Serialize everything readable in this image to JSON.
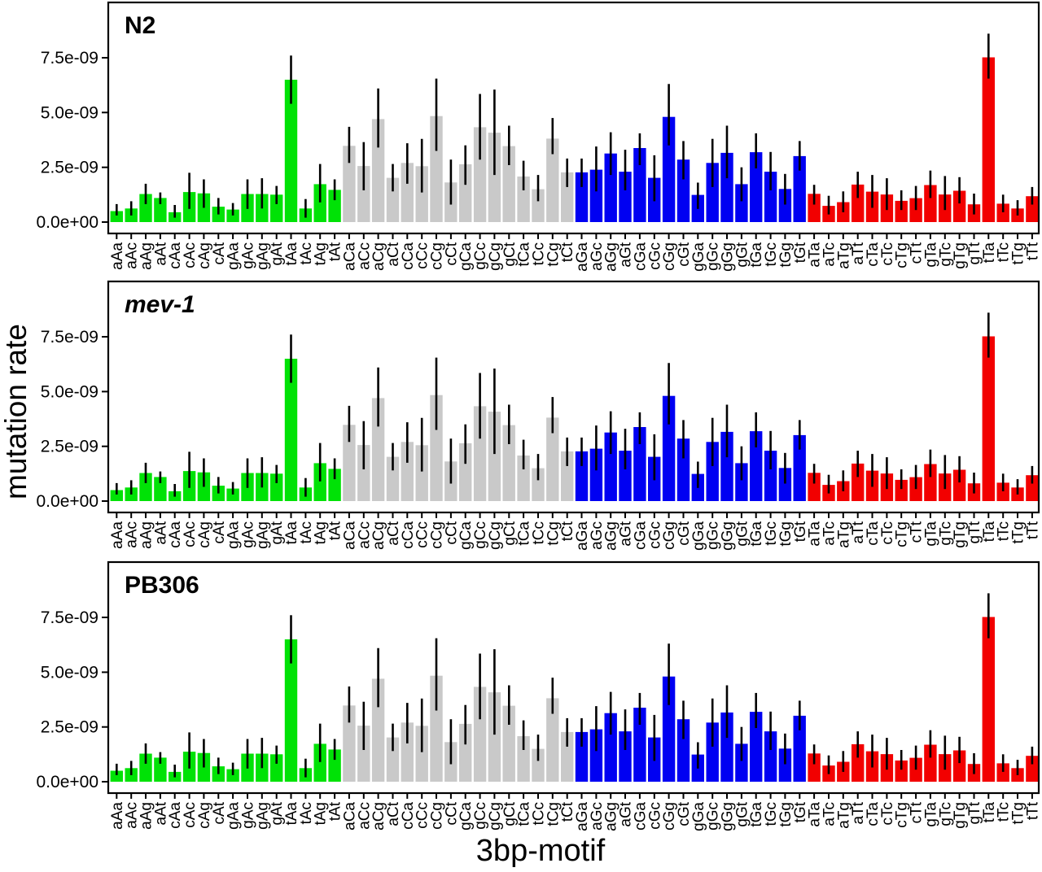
{
  "figure": {
    "description": "Three-panel bar chart of mutation rate by 3bp motif for three strains",
    "panel_count": 3
  },
  "chart_data": {
    "type": "bar",
    "title": "",
    "xlabel": "3bp-motif",
    "ylabel": "mutation rate",
    "grid": false,
    "error_bars": true,
    "legend": "none",
    "value_unit": "1e-9",
    "ylim": [
      0,
      10
    ],
    "yticks": [
      "0.0e+00",
      "2.5e-09",
      "5.0e-09",
      "7.5e-09"
    ],
    "ytick_values": [
      0,
      2.5,
      5.0,
      7.5
    ],
    "categories": [
      "aAa",
      "aAc",
      "aAg",
      "aAt",
      "cAa",
      "cAc",
      "cAg",
      "cAt",
      "gAa",
      "gAc",
      "gAg",
      "gAt",
      "tAa",
      "tAc",
      "tAg",
      "tAt",
      "aCa",
      "aCc",
      "aCg",
      "aCt",
      "cCa",
      "cCc",
      "cCg",
      "cCt",
      "gCa",
      "gCc",
      "gCg",
      "gCt",
      "tCa",
      "tCc",
      "tCg",
      "tCt",
      "aGa",
      "aGc",
      "aGg",
      "aGt",
      "cGa",
      "cGc",
      "cGg",
      "cGt",
      "gGa",
      "gGc",
      "gGg",
      "gGt",
      "tGa",
      "tGc",
      "tGg",
      "tGt",
      "aTa",
      "aTc",
      "aTg",
      "aTt",
      "cTa",
      "cTc",
      "cTg",
      "cTt",
      "gTa",
      "gTc",
      "gTg",
      "gTt",
      "tTa",
      "tTc",
      "tTg",
      "tTt"
    ],
    "groups": [
      {
        "center_base": "A",
        "color": "#00E206",
        "index_range": [
          0,
          15
        ]
      },
      {
        "center_base": "C",
        "color": "#C9C9C9",
        "index_range": [
          16,
          31
        ]
      },
      {
        "center_base": "G",
        "color": "#0000F2",
        "index_range": [
          32,
          47
        ]
      },
      {
        "center_base": "T",
        "color": "#F20000",
        "index_range": [
          48,
          63
        ]
      }
    ],
    "panels": [
      {
        "label": "N2",
        "italic": false,
        "values": [
          0.5,
          0.62,
          1.28,
          1.1,
          0.45,
          1.37,
          1.31,
          0.7,
          0.57,
          1.28,
          1.28,
          1.25,
          6.5,
          0.62,
          1.73,
          1.47,
          3.48,
          2.56,
          4.7,
          2.02,
          2.7,
          2.55,
          4.84,
          1.81,
          2.64,
          4.33,
          4.08,
          3.47,
          2.08,
          1.5,
          3.81,
          2.27,
          2.27,
          2.39,
          3.13,
          2.3,
          3.38,
          2.02,
          4.8,
          2.85,
          1.24,
          2.7,
          3.16,
          1.73,
          3.19,
          2.3,
          1.51,
          3.01,
          1.29,
          0.74,
          0.91,
          1.71,
          1.39,
          1.26,
          0.97,
          1.09,
          1.69,
          1.26,
          1.43,
          0.81,
          7.52,
          0.84,
          0.62,
          1.18
        ],
        "err_lo": [
          0.3,
          0.3,
          0.82,
          0.82,
          0.2,
          0.6,
          0.65,
          0.35,
          0.3,
          0.6,
          0.62,
          0.82,
          5.4,
          0.2,
          0.9,
          1.0,
          2.7,
          1.45,
          3.4,
          1.4,
          1.75,
          1.35,
          3.25,
          0.8,
          1.7,
          2.85,
          2.15,
          2.6,
          1.45,
          0.95,
          3.1,
          1.6,
          1.6,
          1.4,
          2.15,
          1.45,
          2.6,
          0.95,
          3.5,
          1.95,
          0.6,
          1.6,
          2.0,
          0.95,
          2.45,
          1.45,
          0.8,
          2.35,
          0.8,
          0.35,
          0.45,
          1.1,
          0.65,
          0.55,
          0.55,
          0.55,
          1.1,
          0.55,
          0.85,
          0.35,
          6.55,
          0.45,
          0.3,
          0.8
        ],
        "err_hi": [
          0.82,
          0.95,
          1.75,
          1.35,
          0.78,
          2.25,
          1.95,
          1.1,
          0.87,
          1.95,
          2.0,
          1.65,
          7.6,
          1.05,
          2.65,
          1.95,
          4.35,
          3.65,
          6.1,
          2.65,
          3.6,
          3.8,
          6.55,
          2.85,
          3.5,
          5.85,
          6.05,
          4.4,
          2.8,
          2.15,
          4.75,
          2.9,
          2.9,
          3.45,
          4.1,
          3.3,
          4.05,
          3.05,
          6.3,
          3.7,
          1.8,
          3.8,
          4.4,
          2.5,
          4.05,
          3.2,
          2.2,
          3.7,
          1.7,
          1.2,
          1.4,
          2.3,
          2.15,
          2.0,
          1.45,
          1.65,
          2.35,
          2.1,
          2.05,
          1.3,
          8.6,
          1.25,
          1.0,
          1.6
        ]
      },
      {
        "label": "mev-1",
        "italic": true,
        "values": [
          0.5,
          0.62,
          1.28,
          1.1,
          0.45,
          1.37,
          1.31,
          0.7,
          0.57,
          1.28,
          1.28,
          1.25,
          6.5,
          0.62,
          1.73,
          1.47,
          3.48,
          2.56,
          4.7,
          2.02,
          2.7,
          2.55,
          4.84,
          1.81,
          2.64,
          4.33,
          4.08,
          3.47,
          2.08,
          1.5,
          3.81,
          2.27,
          2.27,
          2.39,
          3.13,
          2.3,
          3.38,
          2.02,
          4.8,
          2.85,
          1.24,
          2.7,
          3.16,
          1.73,
          3.19,
          2.3,
          1.51,
          3.01,
          1.29,
          0.74,
          0.91,
          1.71,
          1.39,
          1.26,
          0.97,
          1.09,
          1.69,
          1.26,
          1.43,
          0.81,
          7.52,
          0.84,
          0.62,
          1.18
        ],
        "err_lo": [
          0.3,
          0.3,
          0.82,
          0.82,
          0.2,
          0.6,
          0.65,
          0.35,
          0.3,
          0.6,
          0.62,
          0.82,
          5.4,
          0.2,
          0.9,
          1.0,
          2.7,
          1.45,
          3.4,
          1.4,
          1.75,
          1.35,
          3.25,
          0.8,
          1.7,
          2.85,
          2.15,
          2.6,
          1.45,
          0.95,
          3.1,
          1.6,
          1.6,
          1.4,
          2.15,
          1.45,
          2.6,
          0.95,
          3.5,
          1.95,
          0.6,
          1.6,
          2.0,
          0.95,
          2.45,
          1.45,
          0.8,
          2.35,
          0.8,
          0.35,
          0.45,
          1.1,
          0.65,
          0.55,
          0.55,
          0.55,
          1.1,
          0.55,
          0.85,
          0.35,
          6.55,
          0.45,
          0.3,
          0.8
        ],
        "err_hi": [
          0.82,
          0.95,
          1.75,
          1.35,
          0.78,
          2.25,
          1.95,
          1.1,
          0.87,
          1.95,
          2.0,
          1.65,
          7.6,
          1.05,
          2.65,
          1.95,
          4.35,
          3.65,
          6.1,
          2.65,
          3.6,
          3.8,
          6.55,
          2.85,
          3.5,
          5.85,
          6.05,
          4.4,
          2.8,
          2.15,
          4.75,
          2.9,
          2.9,
          3.45,
          4.1,
          3.3,
          4.05,
          3.05,
          6.3,
          3.7,
          1.8,
          3.8,
          4.4,
          2.5,
          4.05,
          3.2,
          2.2,
          3.7,
          1.7,
          1.2,
          1.4,
          2.3,
          2.15,
          2.0,
          1.45,
          1.65,
          2.35,
          2.1,
          2.05,
          1.3,
          8.6,
          1.25,
          1.0,
          1.6
        ]
      },
      {
        "label": "PB306",
        "italic": false,
        "values": [
          0.5,
          0.62,
          1.28,
          1.1,
          0.45,
          1.37,
          1.31,
          0.7,
          0.57,
          1.28,
          1.28,
          1.25,
          6.5,
          0.62,
          1.73,
          1.47,
          3.48,
          2.56,
          4.7,
          2.02,
          2.7,
          2.55,
          4.84,
          1.81,
          2.64,
          4.33,
          4.08,
          3.47,
          2.08,
          1.5,
          3.81,
          2.27,
          2.27,
          2.39,
          3.13,
          2.3,
          3.38,
          2.02,
          4.8,
          2.85,
          1.24,
          2.7,
          3.16,
          1.73,
          3.19,
          2.3,
          1.51,
          3.01,
          1.29,
          0.74,
          0.91,
          1.71,
          1.39,
          1.26,
          0.97,
          1.09,
          1.69,
          1.26,
          1.43,
          0.81,
          7.52,
          0.84,
          0.62,
          1.18
        ],
        "err_lo": [
          0.3,
          0.3,
          0.82,
          0.82,
          0.2,
          0.6,
          0.65,
          0.35,
          0.3,
          0.6,
          0.62,
          0.82,
          5.4,
          0.2,
          0.9,
          1.0,
          2.7,
          1.45,
          3.4,
          1.4,
          1.75,
          1.35,
          3.25,
          0.8,
          1.7,
          2.85,
          2.15,
          2.6,
          1.45,
          0.95,
          3.1,
          1.6,
          1.6,
          1.4,
          2.15,
          1.45,
          2.6,
          0.95,
          3.5,
          1.95,
          0.6,
          1.6,
          2.0,
          0.95,
          2.45,
          1.45,
          0.8,
          2.35,
          0.8,
          0.35,
          0.45,
          1.1,
          0.65,
          0.55,
          0.55,
          0.55,
          1.1,
          0.55,
          0.85,
          0.35,
          6.55,
          0.45,
          0.3,
          0.8
        ],
        "err_hi": [
          0.82,
          0.95,
          1.75,
          1.35,
          0.78,
          2.25,
          1.95,
          1.1,
          0.87,
          1.95,
          2.0,
          1.65,
          7.6,
          1.05,
          2.65,
          1.95,
          4.35,
          3.65,
          6.1,
          2.65,
          3.6,
          3.8,
          6.55,
          2.85,
          3.5,
          5.85,
          6.05,
          4.4,
          2.8,
          2.15,
          4.75,
          2.9,
          2.9,
          3.45,
          4.1,
          3.3,
          4.05,
          3.05,
          6.3,
          3.7,
          1.8,
          3.8,
          4.4,
          2.5,
          4.05,
          3.2,
          2.2,
          3.7,
          1.7,
          1.2,
          1.4,
          2.3,
          2.15,
          2.0,
          1.45,
          1.65,
          2.35,
          2.1,
          2.05,
          1.3,
          8.6,
          1.25,
          1.0,
          1.6
        ]
      }
    ]
  }
}
